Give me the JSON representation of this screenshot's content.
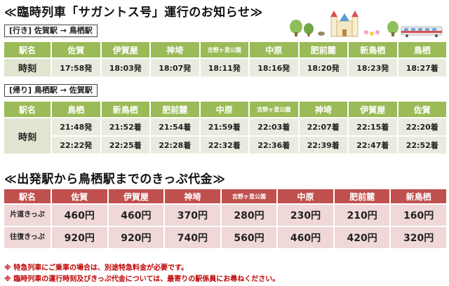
{
  "title": "≪臨時列車「サガントス号」運行のお知らせ≫",
  "outbound": {
    "route": "[行き]  佐賀駅 → 鳥栖駅",
    "header": [
      "駅名",
      "佐賀",
      "伊賀屋",
      "神埼",
      "吉野ヶ里公園",
      "中原",
      "肥前麓",
      "新鳥栖",
      "鳥栖"
    ],
    "row_label": "時刻",
    "times": [
      "17:58発",
      "18:03発",
      "18:07発",
      "18:11発",
      "18:16発",
      "18:20発",
      "18:23発",
      "18:27着"
    ]
  },
  "inbound": {
    "route": "[帰り]  鳥栖駅 → 佐賀駅",
    "header": [
      "駅名",
      "鳥栖",
      "新鳥栖",
      "肥前麓",
      "中原",
      "吉野ヶ里公園",
      "神埼",
      "伊賀屋",
      "佐賀"
    ],
    "row_label": "時刻",
    "times1": [
      "21:48発",
      "21:52着",
      "21:54着",
      "21:59着",
      "22:03着",
      "22:07着",
      "22:15着",
      "22:20着"
    ],
    "times2": [
      "22:22発",
      "22:25着",
      "22:28着",
      "22:32着",
      "22:36着",
      "22:39着",
      "22:47着",
      "22:52着"
    ]
  },
  "fares": {
    "title": "≪出発駅から鳥栖駅までのきっぷ代金≫",
    "header": [
      "駅名",
      "佐賀",
      "伊賀屋",
      "神埼",
      "吉野ヶ里公園",
      "中原",
      "肥前麓",
      "新鳥栖"
    ],
    "oneway_label": "片道きっぷ",
    "oneway": [
      "460円",
      "460円",
      "370円",
      "280円",
      "230円",
      "210円",
      "160円"
    ],
    "round_label": "往復きっぷ",
    "round": [
      "920円",
      "920円",
      "740円",
      "560円",
      "460円",
      "420円",
      "320円"
    ]
  },
  "notes": [
    "※  特急列車にご乗車の場合は、別途特急料金が必要です。",
    "※  臨時列車の運行時刻及びきっぷ代金については、最寄りの駅係員にお尋ねください。"
  ],
  "colors": {
    "green": "#9bbb59",
    "red": "#c0504d",
    "note": "#c00000"
  }
}
